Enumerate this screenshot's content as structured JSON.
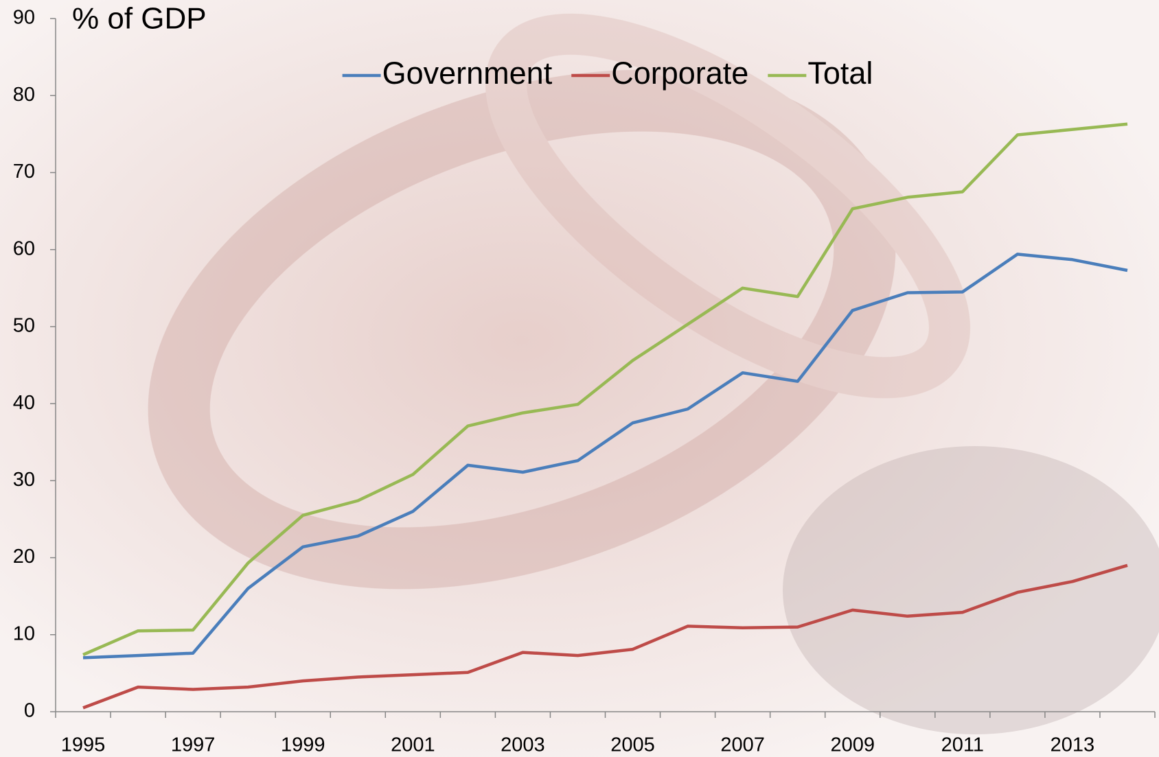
{
  "chart_data": {
    "type": "line",
    "title": "% of GDP",
    "categories": [
      "1995",
      null,
      "1997",
      null,
      "1999",
      null,
      "2001",
      null,
      "2003",
      null,
      "2005",
      null,
      "2007",
      null,
      "2009",
      null,
      "2011",
      null,
      "2013",
      null
    ],
    "series": [
      {
        "name": "Government",
        "color": "#4a7ebb",
        "values": [
          7.0,
          7.3,
          7.6,
          16.0,
          21.4,
          22.8,
          26.0,
          32.0,
          31.1,
          32.6,
          37.5,
          39.3,
          44.0,
          42.9,
          52.1,
          54.4,
          54.5,
          59.4,
          58.7,
          57.3
        ]
      },
      {
        "name": "Corporate",
        "color": "#be4b48",
        "values": [
          0.5,
          3.2,
          2.9,
          3.2,
          4.0,
          4.5,
          4.8,
          5.1,
          7.7,
          7.3,
          8.1,
          11.1,
          10.9,
          11.0,
          13.2,
          12.4,
          12.9,
          15.5,
          16.9,
          19.0
        ]
      },
      {
        "name": "Total",
        "color": "#98b954",
        "values": [
          7.4,
          10.5,
          10.6,
          19.3,
          25.5,
          27.4,
          30.8,
          37.1,
          38.8,
          39.9,
          45.6,
          50.3,
          55.0,
          53.9,
          65.3,
          66.8,
          67.5,
          74.9,
          75.6,
          76.3
        ]
      }
    ],
    "ylim": [
      0,
      90
    ],
    "yticks": [
      0,
      10,
      20,
      30,
      40,
      50,
      60,
      70,
      80,
      90
    ],
    "legend": "top"
  }
}
